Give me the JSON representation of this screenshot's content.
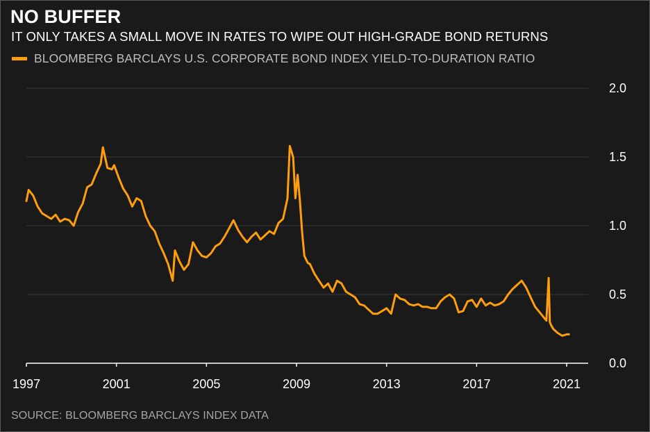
{
  "title": "NO BUFFER",
  "subtitle": "IT ONLY TAKES A SMALL MOVE IN RATES TO WIPE OUT HIGH-GRADE BOND RETURNS",
  "legend": {
    "label": "BLOOMBERG BARCLAYS U.S. CORPORATE BOND INDEX YIELD-TO-DURATION RATIO",
    "color": "#ff9e0d"
  },
  "source": "SOURCE: BLOOMBERG BARCLAYS INDEX DATA",
  "colors": {
    "background": "#1a1a1a",
    "series": "#ff9e0d",
    "grid": "#3a3a3a",
    "axis": "#ffffff"
  },
  "chart_data": {
    "type": "line",
    "title": "NO BUFFER",
    "subtitle": "IT ONLY TAKES A SMALL MOVE IN RATES TO WIPE OUT HIGH-GRADE BOND RETURNS",
    "xlabel": "",
    "ylabel": "",
    "xlim": [
      1997,
      2021.5
    ],
    "ylim": [
      0,
      2.0
    ],
    "x_ticks": [
      1997,
      2001,
      2005,
      2009,
      2013,
      2017,
      2021
    ],
    "x_tick_labels": [
      "1997",
      "2001",
      "2005",
      "2009",
      "2013",
      "2017",
      "2021"
    ],
    "y_ticks": [
      0,
      0.5,
      1.0,
      1.5,
      2.0
    ],
    "y_tick_labels": [
      "0.0",
      "0.5",
      "1.0",
      "1.5",
      "2.0"
    ],
    "y_axis_side": "right",
    "grid": "horizontal",
    "legend_position": "top-left",
    "series": [
      {
        "name": "BLOOMBERG BARCLAYS U.S. CORPORATE BOND INDEX YIELD-TO-DURATION RATIO",
        "x": [
          1997.0,
          1997.1,
          1997.3,
          1997.5,
          1997.7,
          1997.9,
          1998.1,
          1998.3,
          1998.5,
          1998.7,
          1998.9,
          1999.1,
          1999.3,
          1999.5,
          1999.7,
          1999.9,
          2000.1,
          2000.3,
          2000.4,
          2000.6,
          2000.8,
          2000.9,
          2001.1,
          2001.3,
          2001.5,
          2001.7,
          2001.9,
          2002.1,
          2002.3,
          2002.5,
          2002.7,
          2002.9,
          2003.1,
          2003.3,
          2003.5,
          2003.6,
          2003.8,
          2004.0,
          2004.2,
          2004.4,
          2004.6,
          2004.8,
          2005.0,
          2005.2,
          2005.4,
          2005.6,
          2005.8,
          2006.0,
          2006.2,
          2006.4,
          2006.6,
          2006.8,
          2007.0,
          2007.2,
          2007.4,
          2007.6,
          2007.8,
          2008.0,
          2008.2,
          2008.4,
          2008.6,
          2008.7,
          2008.85,
          2008.95,
          2009.05,
          2009.15,
          2009.25,
          2009.35,
          2009.5,
          2009.6,
          2009.8,
          2010.0,
          2010.2,
          2010.4,
          2010.6,
          2010.8,
          2011.0,
          2011.2,
          2011.4,
          2011.6,
          2011.8,
          2012.0,
          2012.2,
          2012.4,
          2012.6,
          2012.8,
          2013.0,
          2013.2,
          2013.4,
          2013.6,
          2013.8,
          2014.0,
          2014.2,
          2014.4,
          2014.6,
          2014.8,
          2015.0,
          2015.2,
          2015.4,
          2015.6,
          2015.8,
          2016.0,
          2016.2,
          2016.4,
          2016.6,
          2016.8,
          2017.0,
          2017.2,
          2017.4,
          2017.6,
          2017.8,
          2018.0,
          2018.2,
          2018.4,
          2018.6,
          2018.8,
          2019.0,
          2019.2,
          2019.4,
          2019.6,
          2019.8,
          2020.0,
          2020.1,
          2020.2,
          2020.25,
          2020.3,
          2020.4,
          2020.6,
          2020.8,
          2021.0,
          2021.1
        ],
        "values": [
          1.18,
          1.26,
          1.22,
          1.14,
          1.09,
          1.07,
          1.05,
          1.08,
          1.03,
          1.05,
          1.04,
          1.0,
          1.1,
          1.16,
          1.28,
          1.3,
          1.38,
          1.45,
          1.57,
          1.42,
          1.41,
          1.44,
          1.35,
          1.27,
          1.22,
          1.14,
          1.2,
          1.18,
          1.07,
          1.0,
          0.96,
          0.87,
          0.8,
          0.72,
          0.6,
          0.82,
          0.74,
          0.68,
          0.72,
          0.88,
          0.82,
          0.78,
          0.77,
          0.8,
          0.85,
          0.87,
          0.92,
          0.98,
          1.04,
          0.97,
          0.92,
          0.88,
          0.92,
          0.95,
          0.9,
          0.93,
          0.96,
          0.94,
          1.02,
          1.05,
          1.2,
          1.58,
          1.5,
          1.2,
          1.37,
          1.18,
          0.95,
          0.78,
          0.73,
          0.72,
          0.65,
          0.6,
          0.55,
          0.58,
          0.52,
          0.6,
          0.58,
          0.52,
          0.5,
          0.48,
          0.43,
          0.42,
          0.39,
          0.36,
          0.36,
          0.38,
          0.4,
          0.36,
          0.5,
          0.47,
          0.46,
          0.43,
          0.42,
          0.43,
          0.41,
          0.41,
          0.4,
          0.4,
          0.45,
          0.48,
          0.5,
          0.47,
          0.37,
          0.38,
          0.45,
          0.46,
          0.41,
          0.47,
          0.42,
          0.44,
          0.42,
          0.43,
          0.45,
          0.5,
          0.54,
          0.57,
          0.6,
          0.55,
          0.48,
          0.41,
          0.37,
          0.33,
          0.31,
          0.62,
          0.3,
          0.28,
          0.25,
          0.22,
          0.2,
          0.21,
          0.21
        ]
      }
    ]
  }
}
